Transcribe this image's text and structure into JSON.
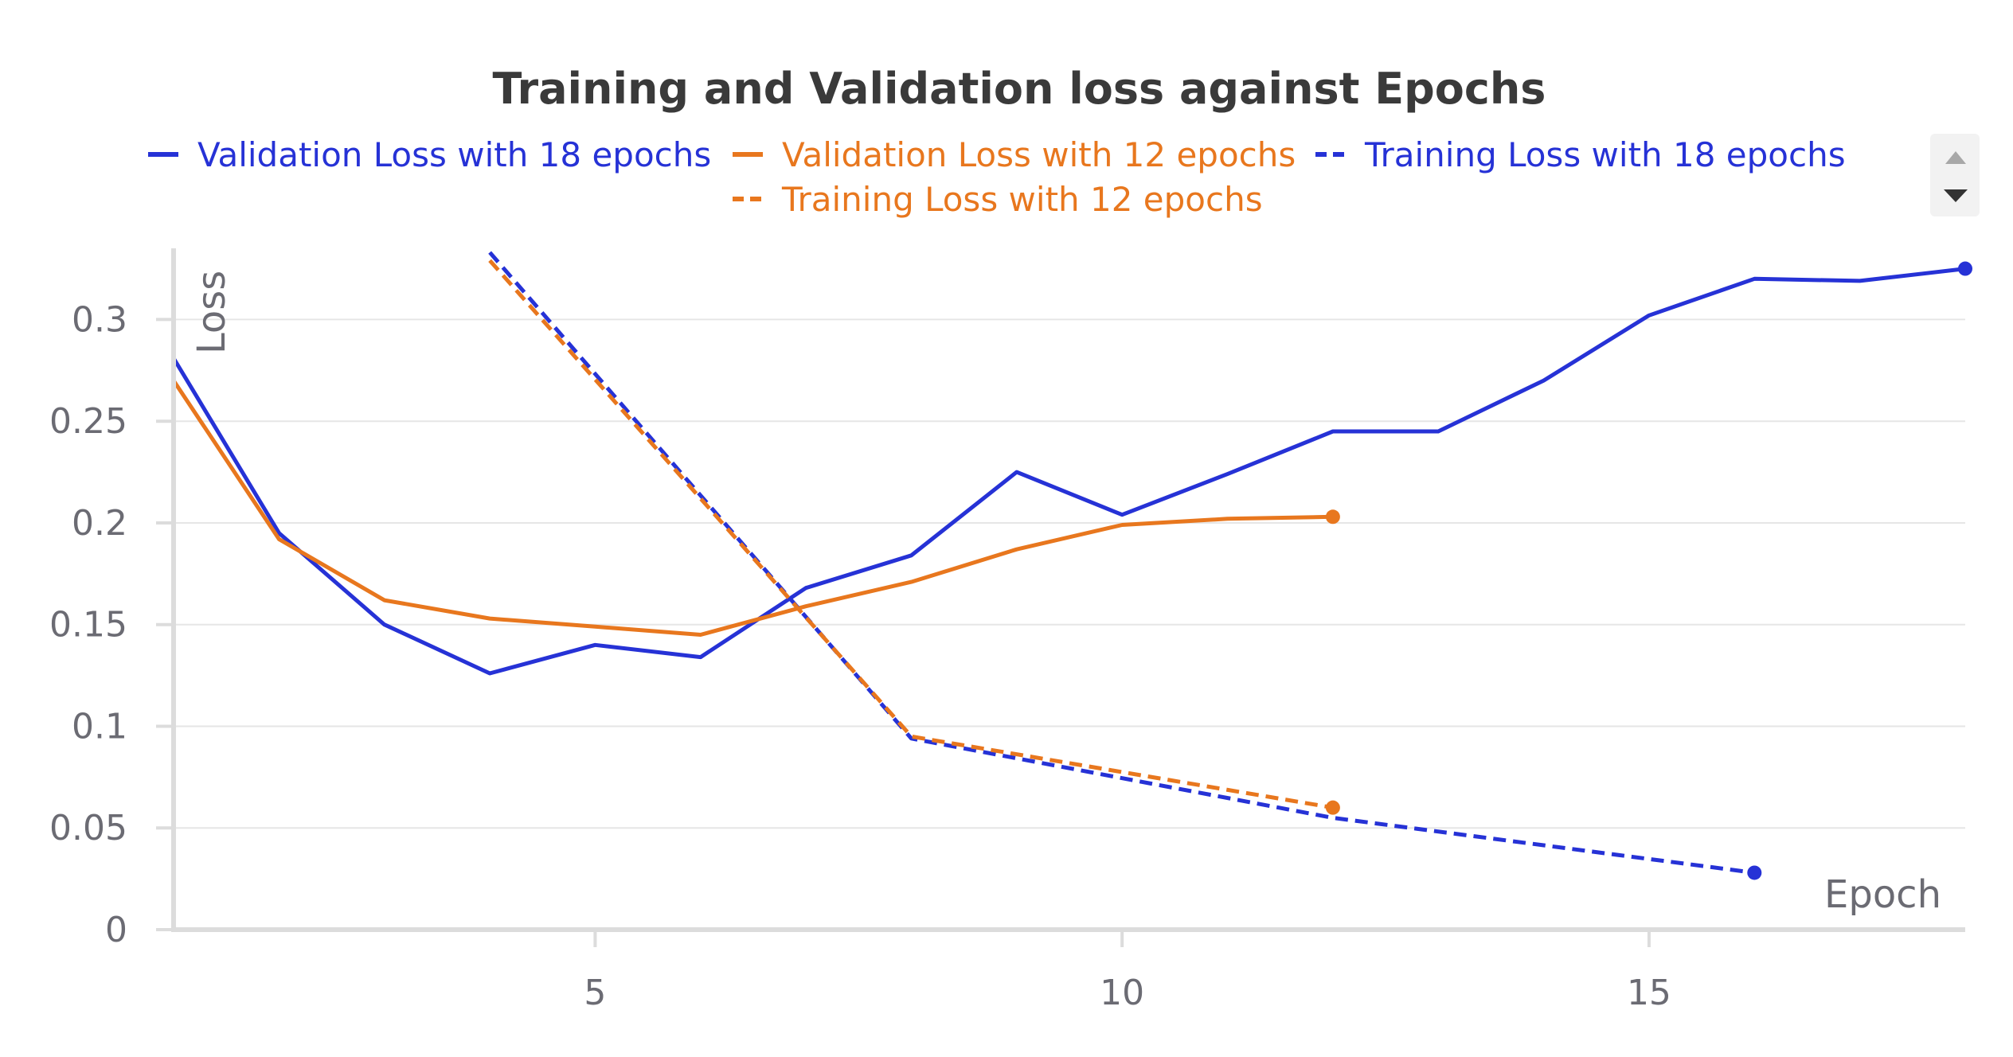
{
  "chart_data": {
    "type": "line",
    "title": "Training and Validation loss against Epochs",
    "xlabel": "Epoch",
    "ylabel": "Loss",
    "xlim": [
      1,
      18
    ],
    "ylim": [
      0,
      0.335
    ],
    "x_ticks": [
      5,
      10,
      15
    ],
    "y_ticks": [
      0,
      0.05,
      0.1,
      0.15,
      0.2,
      0.25,
      0.3
    ],
    "y_tick_labels": [
      "0",
      "0.05",
      "0.1",
      "0.15",
      "0.2",
      "0.25",
      "0.3"
    ],
    "x_tick_labels": [
      "5",
      "10",
      "15"
    ],
    "grid": true,
    "legend_position": "top",
    "series": [
      {
        "name": "Validation Loss with 18 epochs",
        "color": "#2632d6",
        "dash": "solid",
        "x": [
          1,
          2,
          3,
          4,
          5,
          6,
          7,
          8,
          9,
          10,
          11,
          12,
          13,
          14,
          15,
          16,
          17,
          18
        ],
        "y": [
          0.281,
          0.195,
          0.15,
          0.126,
          0.14,
          0.134,
          0.168,
          0.184,
          0.225,
          0.204,
          0.224,
          0.245,
          0.245,
          0.27,
          0.302,
          0.32,
          0.319,
          0.325
        ]
      },
      {
        "name": "Validation Loss with 12 epochs",
        "color": "#e8771e",
        "dash": "solid",
        "x": [
          1,
          2,
          3,
          4,
          5,
          6,
          7,
          8,
          9,
          10,
          11,
          12
        ],
        "y": [
          0.27,
          0.192,
          0.162,
          0.153,
          0.149,
          0.145,
          0.159,
          0.171,
          0.187,
          0.199,
          0.202,
          0.203
        ]
      },
      {
        "name": "Training Loss with 18 epochs",
        "color": "#2632d6",
        "dash": "dashed",
        "x": [
          4,
          8,
          12,
          16
        ],
        "y": [
          0.333,
          0.094,
          0.055,
          0.028
        ]
      },
      {
        "name": "Training Loss with 12 epochs",
        "color": "#e8771e",
        "dash": "dashed",
        "x": [
          4,
          8,
          12
        ],
        "y": [
          0.329,
          0.095,
          0.06
        ]
      }
    ]
  }
}
